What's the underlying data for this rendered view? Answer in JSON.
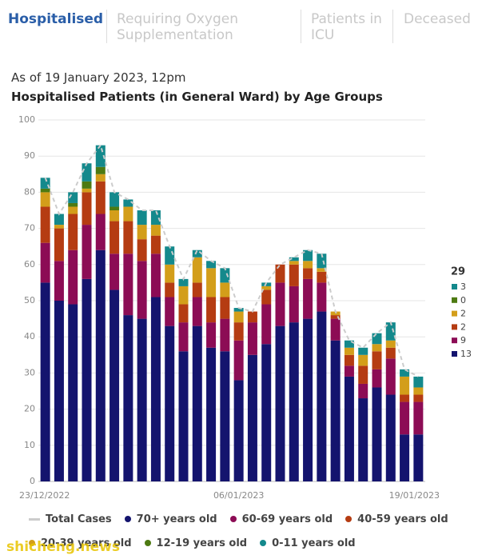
{
  "tabs": [
    "Hospitalised",
    "Requiring Oxygen Supplementation",
    "Patients in ICU",
    "Deceased"
  ],
  "as_of": "As of 19 January 2023, 12pm",
  "watermark": "shicheng.news",
  "chart_data": {
    "type": "bar",
    "stacked": true,
    "title": "Hospitalised Patients (in General Ward) by Age Groups",
    "categories": [
      "23/12/2022",
      null,
      null,
      null,
      null,
      null,
      null,
      null,
      null,
      null,
      null,
      null,
      null,
      null,
      "06/01/2023",
      null,
      null,
      null,
      null,
      null,
      null,
      null,
      null,
      null,
      null,
      null,
      null,
      "19/01/2023"
    ],
    "ylim": [
      0,
      100
    ],
    "yticks": [
      0,
      10,
      20,
      30,
      40,
      50,
      60,
      70,
      80,
      90,
      100
    ],
    "grid": true,
    "series": [
      {
        "name": "Total Cases",
        "type": "line",
        "dashed": true,
        "color": "#cccccc",
        "values": [
          84,
          74,
          80,
          88,
          93,
          80,
          78,
          75,
          75,
          65,
          56,
          64,
          61,
          59,
          48,
          47,
          55,
          60,
          62,
          64,
          63,
          47,
          39,
          37,
          41,
          44,
          31,
          29
        ]
      },
      {
        "name": "70+ years old",
        "type": "bar",
        "color": "#14146e",
        "values": [
          55,
          50,
          49,
          56,
          64,
          53,
          46,
          45,
          51,
          43,
          36,
          43,
          37,
          36,
          28,
          35,
          38,
          43,
          44,
          45,
          47,
          39,
          29,
          23,
          26,
          24,
          13,
          13
        ]
      },
      {
        "name": "60-69 years old",
        "type": "bar",
        "color": "#8c0c55",
        "values": [
          11,
          11,
          15,
          15,
          10,
          10,
          17,
          16,
          12,
          8,
          8,
          8,
          7,
          9,
          11,
          9,
          11,
          12,
          10,
          11,
          8,
          6,
          3,
          4,
          5,
          10,
          9,
          9
        ]
      },
      {
        "name": "40-59 years old",
        "type": "bar",
        "color": "#b53c12",
        "values": [
          10,
          9,
          10,
          9,
          9,
          9,
          9,
          6,
          5,
          4,
          5,
          4,
          7,
          6,
          5,
          3,
          4,
          5,
          6,
          3,
          3,
          1,
          3,
          5,
          5,
          3,
          2,
          2
        ]
      },
      {
        "name": "20-39 years old",
        "type": "bar",
        "color": "#d39e1a",
        "values": [
          4,
          1,
          2,
          1,
          2,
          3,
          4,
          4,
          3,
          5,
          5,
          7,
          8,
          4,
          3,
          0,
          1,
          0,
          1,
          2,
          1,
          1,
          2,
          3,
          2,
          2,
          5,
          2
        ]
      },
      {
        "name": "12-19 years old",
        "type": "bar",
        "color": "#4d7a12",
        "values": [
          1,
          0,
          1,
          2,
          2,
          1,
          0,
          0,
          0,
          0,
          0,
          0,
          0,
          0,
          0,
          0,
          0,
          0,
          0,
          0,
          0,
          0,
          0,
          0,
          0,
          0,
          0,
          0
        ]
      },
      {
        "name": "0-11 years old",
        "type": "bar",
        "color": "#14898c",
        "values": [
          3,
          3,
          3,
          5,
          6,
          4,
          2,
          4,
          4,
          5,
          2,
          2,
          2,
          4,
          1,
          0,
          1,
          0,
          1,
          3,
          4,
          0,
          2,
          2,
          3,
          5,
          2,
          3
        ]
      }
    ]
  }
}
